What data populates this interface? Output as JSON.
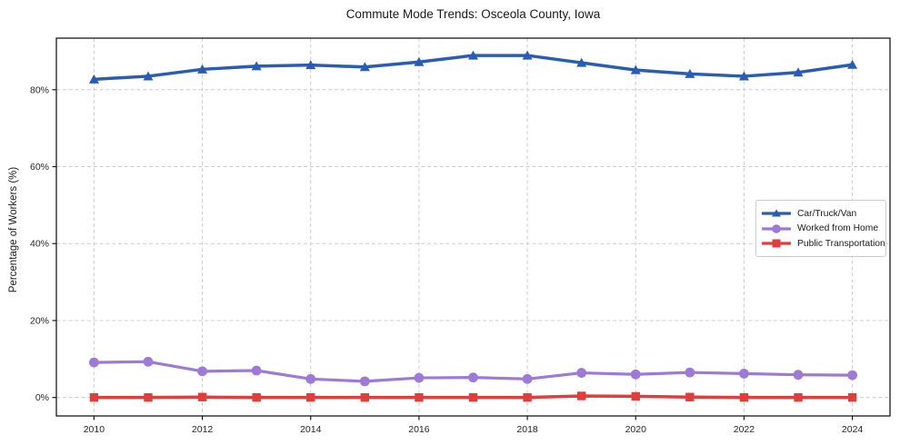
{
  "chart_data": {
    "type": "line",
    "title": "Commute Mode Trends: Osceola County, Iowa",
    "xlabel": "",
    "ylabel": "Percentage of Workers (%)",
    "x": [
      2010,
      2011,
      2012,
      2013,
      2014,
      2015,
      2016,
      2017,
      2018,
      2019,
      2020,
      2021,
      2022,
      2023,
      2024
    ],
    "x_tick_labels": [
      "2010",
      "2012",
      "2014",
      "2016",
      "2018",
      "2020",
      "2022",
      "2024"
    ],
    "y_ticks": [
      0,
      20,
      40,
      60,
      80
    ],
    "y_tick_labels": [
      "0%",
      "20%",
      "40%",
      "60%",
      "80%"
    ],
    "ylim": [
      -4.8,
      93.4
    ],
    "grid": true,
    "grid_style": "dashed",
    "legend_position": "center right",
    "colors": {
      "axis": "#1a1a1a",
      "grid": "#cccccc",
      "background": "#ffffff"
    },
    "series": [
      {
        "name": "Car/Truck/Van",
        "color": "#2b5cb3",
        "marker": "triangle",
        "values": [
          82.7,
          83.5,
          85.3,
          86.1,
          86.4,
          85.9,
          87.2,
          88.9,
          88.9,
          87.0,
          85.1,
          84.1,
          83.5,
          84.5,
          86.5
        ]
      },
      {
        "name": "Worked from Home",
        "color": "#9d7ad6",
        "marker": "circle",
        "values": [
          9.1,
          9.3,
          6.8,
          7.0,
          4.8,
          4.2,
          5.1,
          5.2,
          4.8,
          6.4,
          6.0,
          6.5,
          6.2,
          5.9,
          5.8
        ]
      },
      {
        "name": "Public Transportation",
        "color": "#e23d3d",
        "marker": "square",
        "values": [
          0.0,
          0.0,
          0.1,
          0.0,
          0.0,
          0.0,
          0.0,
          0.0,
          0.0,
          0.4,
          0.3,
          0.1,
          0.0,
          0.0,
          0.0
        ]
      }
    ]
  }
}
